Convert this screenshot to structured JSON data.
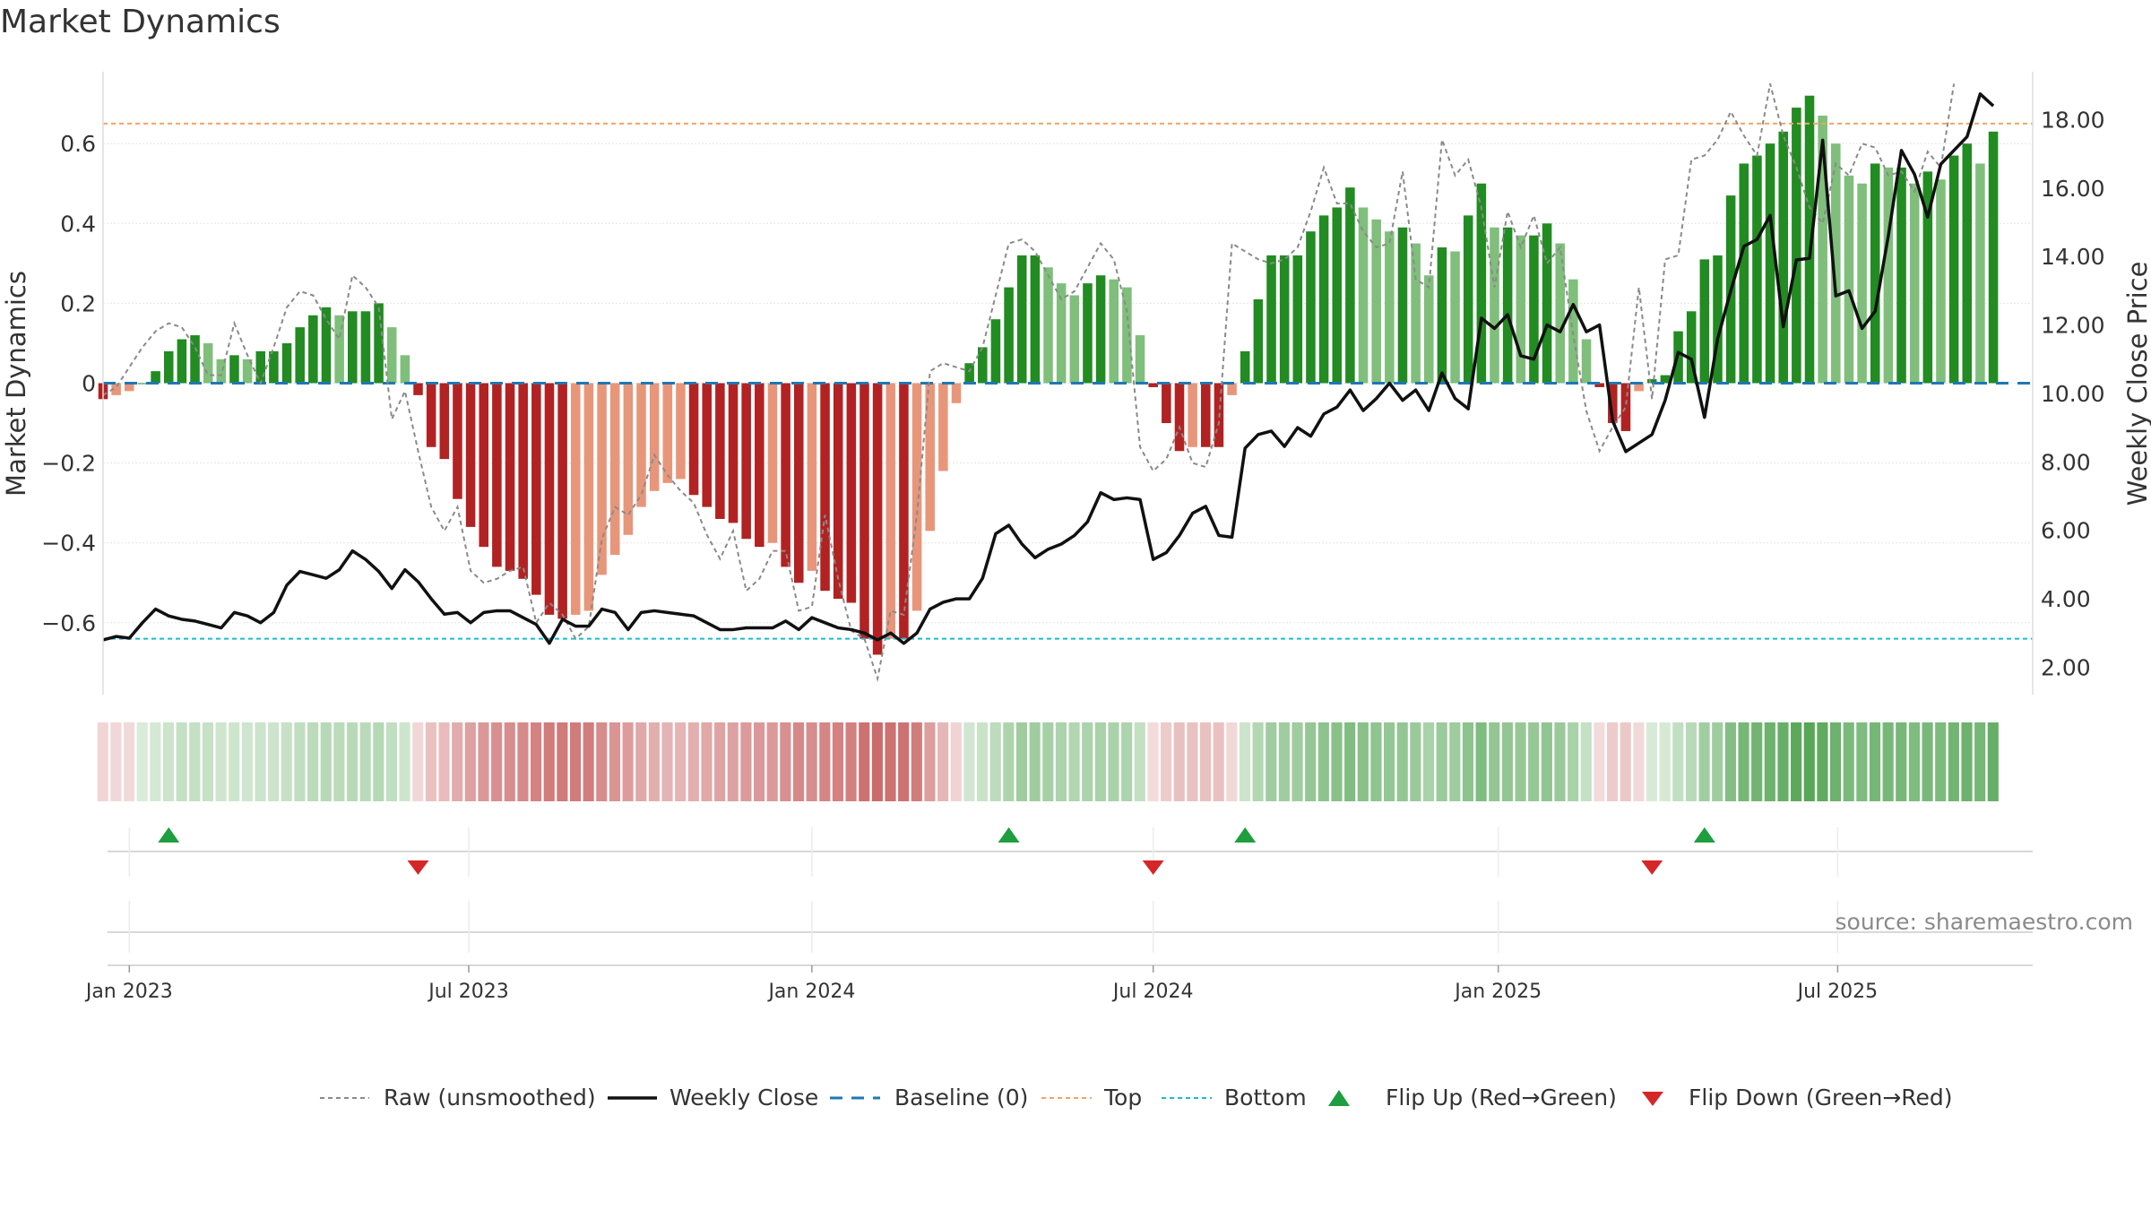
{
  "chart_data": {
    "type": "bar",
    "title": "Market Dynamics",
    "ylabel_left": "Market Dynamics",
    "ylabel_right": "Weekly Close Price",
    "left_axis": {
      "ylim": [
        -0.78,
        0.78
      ],
      "ticks": [
        -0.6,
        -0.4,
        -0.2,
        0,
        0.2,
        0.4,
        0.6
      ],
      "tick_labels": [
        "−0.6",
        "−0.4",
        "−0.2",
        "0",
        "0.2",
        "0.4",
        "0.6"
      ]
    },
    "right_axis": {
      "ylim": [
        1.2,
        19.4
      ],
      "ticks": [
        2,
        4,
        6,
        8,
        10,
        12,
        14,
        16,
        18
      ],
      "tick_labels": [
        "2.00",
        "4.00",
        "6.00",
        "8.00",
        "10.00",
        "12.00",
        "14.00",
        "16.00",
        "18.00"
      ]
    },
    "x_axis": {
      "range": [
        "2022-12-19",
        "2025-10-13"
      ],
      "ticks": [
        "2023-01-02",
        "2023-07-02",
        "2024-01-01",
        "2024-07-01",
        "2025-01-01",
        "2025-07-01"
      ],
      "tick_labels": [
        "Jan 2023",
        "Jul 2023",
        "Jan 2024",
        "Jul 2024",
        "Jan 2025",
        "Jul 2025"
      ]
    },
    "start_week": "2022-12-19",
    "week_step_days": 7,
    "top_level": 0.65,
    "bottom_level": -0.64,
    "baseline": 0,
    "grid": true,
    "series": [
      {
        "name": "Market Dynamics",
        "values": [
          -0.04,
          -0.03,
          -0.02,
          0.0,
          0.03,
          0.08,
          0.11,
          0.12,
          0.1,
          0.06,
          0.07,
          0.06,
          0.08,
          0.08,
          0.1,
          0.14,
          0.17,
          0.19,
          0.17,
          0.18,
          0.18,
          0.2,
          0.14,
          0.07,
          -0.03,
          -0.16,
          -0.19,
          -0.29,
          -0.36,
          -0.41,
          -0.46,
          -0.47,
          -0.49,
          -0.53,
          -0.58,
          -0.59,
          -0.58,
          -0.57,
          -0.48,
          -0.43,
          -0.38,
          -0.31,
          -0.27,
          -0.25,
          -0.24,
          -0.28,
          -0.31,
          -0.34,
          -0.35,
          -0.39,
          -0.41,
          -0.4,
          -0.46,
          -0.5,
          -0.47,
          -0.52,
          -0.54,
          -0.55,
          -0.64,
          -0.68,
          -0.64,
          -0.64,
          -0.57,
          -0.37,
          -0.22,
          -0.05,
          0.05,
          0.09,
          0.16,
          0.24,
          0.32,
          0.32,
          0.29,
          0.25,
          0.22,
          0.25,
          0.27,
          0.26,
          0.24,
          0.12,
          -0.01,
          -0.1,
          -0.17,
          -0.16,
          -0.16,
          -0.16,
          -0.03,
          0.08,
          0.21,
          0.32,
          0.32,
          0.32,
          0.38,
          0.42,
          0.44,
          0.49,
          0.44,
          0.41,
          0.38,
          0.39,
          0.35,
          0.27,
          0.34,
          0.33,
          0.42,
          0.5,
          0.39,
          0.39,
          0.37,
          0.37,
          0.4,
          0.35,
          0.26,
          0.11,
          -0.01,
          -0.1,
          -0.12,
          -0.02,
          0.01,
          0.02,
          0.13,
          0.18,
          0.31,
          0.32,
          0.47,
          0.55,
          0.57,
          0.6,
          0.63,
          0.69,
          0.72,
          0.67,
          0.6,
          0.52,
          0.5,
          0.55,
          0.54,
          0.54,
          0.5,
          0.53,
          0.51,
          0.57,
          0.6,
          0.55,
          0.63
        ]
      },
      {
        "name": "Raw (unsmoothed)",
        "values": [
          -0.03,
          -0.01,
          0.04,
          0.09,
          0.13,
          0.15,
          0.14,
          0.09,
          0.02,
          0.02,
          0.15,
          0.07,
          0.0,
          0.09,
          0.19,
          0.23,
          0.22,
          0.16,
          0.11,
          0.27,
          0.24,
          0.19,
          -0.09,
          -0.02,
          -0.17,
          -0.31,
          -0.37,
          -0.31,
          -0.47,
          -0.5,
          -0.49,
          -0.47,
          -0.46,
          -0.6,
          -0.55,
          -0.58,
          -0.64,
          -0.61,
          -0.39,
          -0.31,
          -0.33,
          -0.28,
          -0.18,
          -0.23,
          -0.27,
          -0.3,
          -0.38,
          -0.44,
          -0.37,
          -0.52,
          -0.49,
          -0.42,
          -0.42,
          -0.57,
          -0.56,
          -0.33,
          -0.49,
          -0.62,
          -0.64,
          -0.74,
          -0.57,
          -0.58,
          -0.33,
          0.03,
          0.05,
          0.04,
          0.03,
          0.09,
          0.22,
          0.35,
          0.36,
          0.33,
          0.27,
          0.21,
          0.23,
          0.29,
          0.35,
          0.31,
          0.18,
          -0.16,
          -0.22,
          -0.19,
          -0.11,
          -0.2,
          -0.21,
          -0.1,
          0.35,
          0.33,
          0.31,
          0.3,
          0.31,
          0.34,
          0.43,
          0.54,
          0.45,
          0.45,
          0.38,
          0.34,
          0.35,
          0.53,
          0.26,
          0.24,
          0.61,
          0.52,
          0.56,
          0.44,
          0.24,
          0.43,
          0.34,
          0.42,
          0.3,
          0.34,
          0.12,
          -0.07,
          -0.17,
          -0.11,
          -0.06,
          0.24,
          -0.04,
          0.31,
          0.32,
          0.56,
          0.57,
          0.61,
          0.68,
          0.62,
          0.57,
          0.75,
          0.62,
          0.54,
          0.44,
          0.4,
          0.55,
          0.52,
          0.6,
          0.59,
          0.52,
          0.53,
          0.48,
          0.58,
          0.54,
          0.75
        ]
      },
      {
        "name": "Weekly Close",
        "values": [
          2.8,
          2.9,
          2.85,
          3.3,
          3.7,
          3.5,
          3.4,
          3.35,
          3.25,
          3.15,
          3.6,
          3.5,
          3.3,
          3.6,
          4.4,
          4.8,
          4.7,
          4.6,
          4.85,
          5.4,
          5.15,
          4.8,
          4.3,
          4.85,
          4.5,
          4.0,
          3.55,
          3.6,
          3.3,
          3.6,
          3.65,
          3.65,
          3.45,
          3.25,
          2.7,
          3.4,
          3.2,
          3.2,
          3.7,
          3.6,
          3.1,
          3.6,
          3.65,
          3.6,
          3.55,
          3.5,
          3.3,
          3.1,
          3.1,
          3.15,
          3.15,
          3.15,
          3.35,
          3.1,
          3.45,
          3.3,
          3.15,
          3.1,
          3.0,
          2.8,
          3.0,
          2.7,
          3.0,
          3.7,
          3.9,
          4.0,
          4.0,
          4.6,
          5.9,
          6.15,
          5.6,
          5.2,
          5.45,
          5.6,
          5.85,
          6.25,
          7.1,
          6.9,
          6.95,
          6.9,
          5.15,
          5.35,
          5.85,
          6.5,
          6.7,
          5.85,
          5.8,
          8.4,
          8.8,
          8.9,
          8.45,
          9.0,
          8.75,
          9.4,
          9.6,
          10.1,
          9.5,
          9.85,
          10.3,
          9.8,
          10.1,
          9.5,
          10.6,
          9.85,
          9.55,
          12.2,
          11.9,
          12.3,
          11.1,
          11.0,
          12.0,
          11.8,
          12.6,
          11.8,
          12.0,
          9.2,
          8.3,
          8.55,
          8.8,
          9.8,
          11.2,
          11.0,
          9.3,
          11.6,
          13.0,
          14.3,
          14.5,
          15.2,
          11.95,
          13.9,
          13.95,
          17.4,
          12.85,
          13.0,
          11.9,
          12.4,
          14.6,
          17.1,
          16.4,
          15.15,
          16.7,
          17.1,
          17.5,
          18.75,
          18.4,
          17.3,
          18.3
        ]
      }
    ],
    "band_label": "",
    "flips": {
      "up": [
        "2023-01-23",
        "2024-04-15",
        "2024-08-19",
        "2025-04-21"
      ],
      "down": [
        "2023-06-05",
        "2024-07-01",
        "2025-03-24"
      ]
    },
    "colors": {
      "pos_strong": "#228b22",
      "pos_weak": "#7fbf7b",
      "neg_strong": "#b22222",
      "neg_weak": "#e8967a",
      "raw": "#8a8a8a",
      "close": "#111111",
      "baseline": "#1f77b4",
      "top": "#f4a460",
      "bottom": "#17becf",
      "flip_up": "#1e9e3e",
      "flip_down": "#d62728"
    }
  },
  "legend": {
    "raw": "Raw (unsmoothed)",
    "close": "Weekly Close",
    "baseline": "Baseline (0)",
    "top": "Top",
    "bottom": "Bottom",
    "flip_up": "Flip Up (Red→Green)",
    "flip_down": "Flip Down (Green→Red)"
  },
  "source": "source: sharemaestro.com"
}
